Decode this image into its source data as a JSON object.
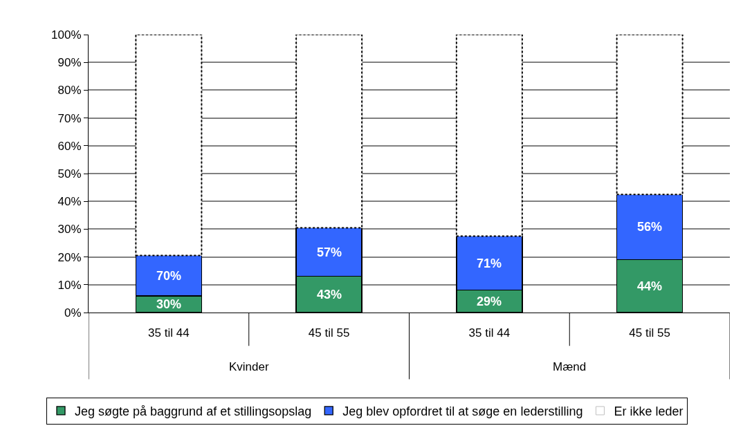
{
  "chart_data": {
    "type": "bar",
    "stacked": true,
    "categories": [
      "35 til 44",
      "45 til 55",
      "35 til 44",
      "45 til 55"
    ],
    "annotations": [
      "Kvinder",
      "Mænd",
      "30%",
      "43%",
      "29%",
      "44%",
      "70%",
      "57%",
      "71%",
      "56%"
    ],
    "series": [
      {
        "name": "Jeg søgte på baggrund af et stillingsopslag",
        "color": "#339966",
        "values": [
          6,
          13,
          8,
          19
        ]
      },
      {
        "name": "Jeg blev opfordret til at søge en lederstilling",
        "color": "#3366ff",
        "values": [
          14.5,
          17.5,
          19.5,
          23.5
        ]
      },
      {
        "name": "Er ikke leder",
        "color": "#ffffff",
        "values": [
          79.5,
          69.5,
          72.5,
          57.5
        ]
      }
    ],
    "ylim": [
      0,
      100
    ],
    "yticks": [
      {
        "value": 0,
        "label": "0%"
      },
      {
        "value": 10,
        "label": "10%"
      },
      {
        "value": 20,
        "label": "20%"
      },
      {
        "value": 30,
        "label": "30%"
      },
      {
        "value": 40,
        "label": "40%"
      },
      {
        "value": 50,
        "label": "50%"
      },
      {
        "value": 60,
        "label": "60%"
      },
      {
        "value": 70,
        "label": "70%"
      },
      {
        "value": 80,
        "label": "80%"
      },
      {
        "value": 90,
        "label": "90%"
      },
      {
        "value": 100,
        "label": "100%"
      }
    ],
    "grid": "y",
    "legend": "bottom"
  }
}
